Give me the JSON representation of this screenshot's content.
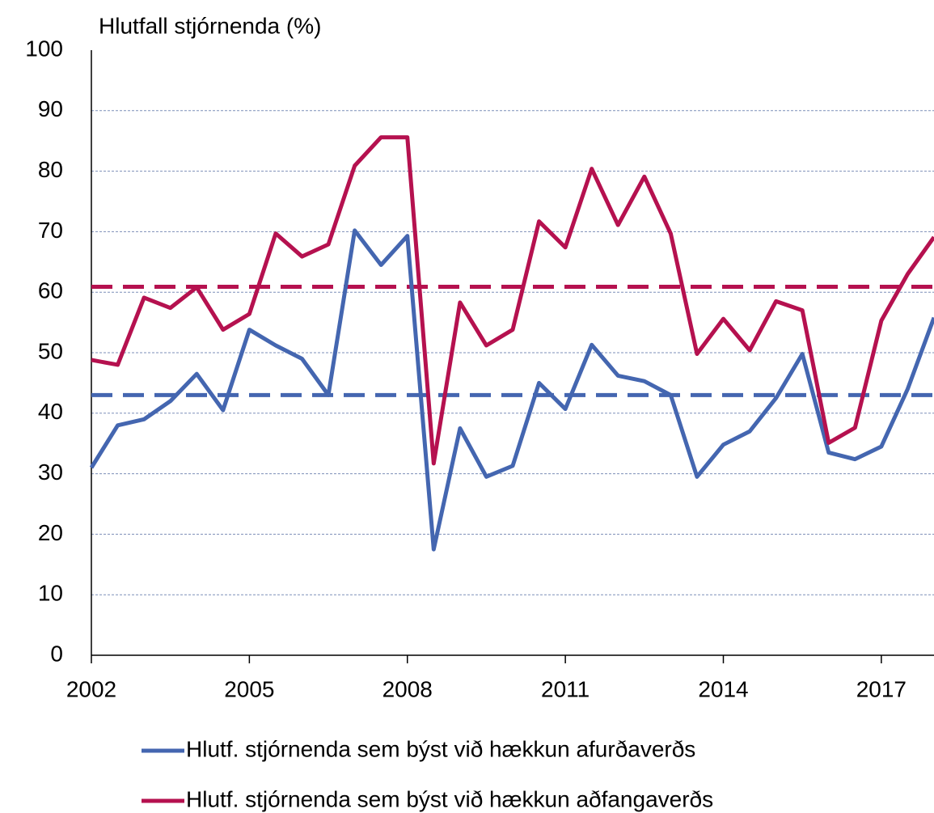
{
  "chart_data": {
    "type": "line",
    "title": "Hlutfall stjórnenda (%)",
    "x": [
      2002,
      2002.5,
      2003,
      2003.5,
      2004,
      2004.5,
      2005,
      2005.5,
      2006,
      2006.5,
      2007,
      2007.5,
      2008,
      2008.5,
      2009,
      2009.5,
      2010,
      2010.5,
      2011,
      2011.5,
      2012,
      2012.5,
      2013,
      2013.5,
      2014,
      2014.5,
      2015,
      2015.5,
      2016,
      2016.5,
      2017,
      2017.5,
      2018
    ],
    "series": [
      {
        "name": "Hlutf. stjórnenda sem býst við hækkun afurðaverðs",
        "color": "#4466b0",
        "values": [
          31,
          38,
          39,
          42,
          46.5,
          40.5,
          53.8,
          51.2,
          49,
          43,
          70.2,
          64.5,
          69.3,
          17.5,
          37.5,
          29.5,
          31.3,
          45,
          40.7,
          51.3,
          46.2,
          45.3,
          43,
          29.5,
          34.8,
          37,
          42.5,
          49.8,
          33.5,
          32.4,
          34.5,
          44,
          55.8
        ]
      },
      {
        "name": "Hlutf. stjórnenda sem býst við hækkun aðfangaverðs",
        "color": "#b5114f",
        "values": [
          48.8,
          48,
          59.1,
          57.4,
          60.8,
          53.8,
          56.4,
          69.7,
          65.9,
          67.9,
          80.9,
          85.6,
          85.6,
          31.7,
          58.3,
          51.2,
          53.8,
          71.7,
          67.4,
          80.4,
          71.1,
          79.1,
          69.7,
          49.8,
          55.6,
          50.4,
          58.5,
          57,
          35.1,
          37.6,
          55.3,
          63,
          69.1
        ]
      }
    ],
    "reference_lines": [
      {
        "value": 43,
        "color": "#4466b0"
      },
      {
        "value": 60.9,
        "color": "#b5114f"
      }
    ],
    "xlim": [
      2002,
      2018
    ],
    "xticks": [
      2002,
      2005,
      2008,
      2011,
      2014,
      2017
    ],
    "ylim": [
      0,
      100
    ],
    "yticks": [
      0,
      10,
      20,
      30,
      40,
      50,
      60,
      70,
      80,
      90,
      100
    ],
    "grid": true
  }
}
